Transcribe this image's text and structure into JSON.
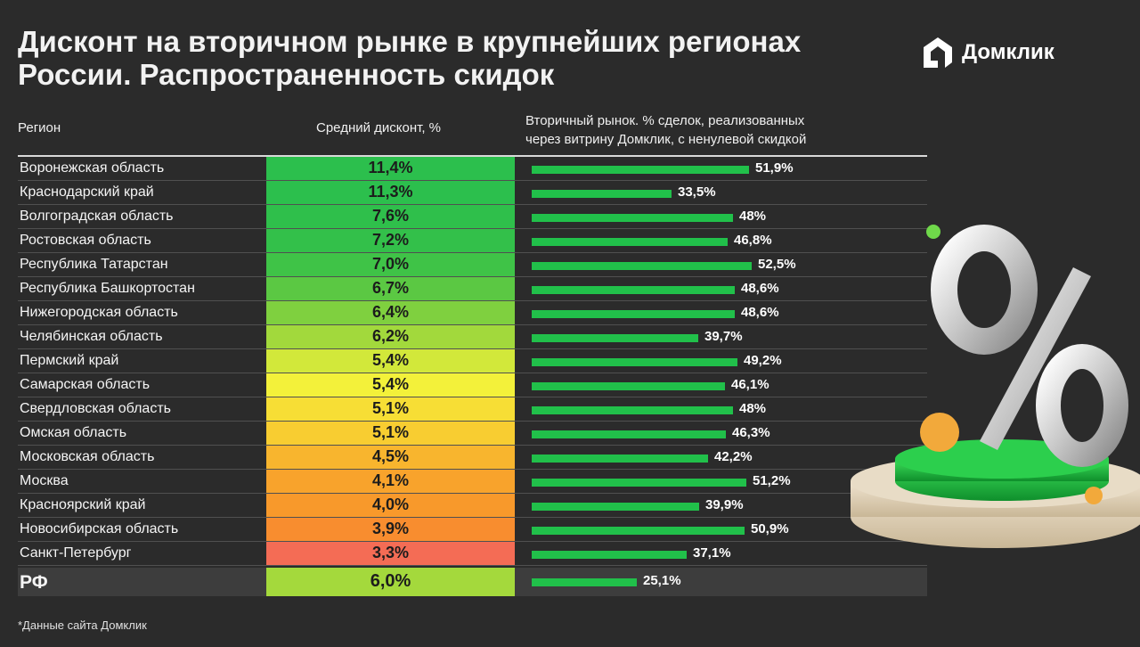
{
  "title": {
    "line1": "Дисконт на вторичном рынке в крупнейших регионах",
    "line2": "России. Распространенность скидок"
  },
  "brand": {
    "name": "Домклик",
    "color": "#21c04a"
  },
  "headers": {
    "region": "Регион",
    "discount": "Средний дисконт, %",
    "bar_line1": "Вторичный рынок. % сделок, реализованных",
    "bar_line2": "через витрину Домклик, с ненулевой скидкой"
  },
  "rows": [
    {
      "region": "Воронежская область",
      "discount": "11,4%",
      "share": "51,9%",
      "color": "#2cbf4d"
    },
    {
      "region": "Краснодарский край",
      "discount": "11,3%",
      "share": "33,5%",
      "color": "#2cbf4d"
    },
    {
      "region": "Волгоградская область",
      "discount": "7,6%",
      "share": "48%",
      "color": "#2fbf4b"
    },
    {
      "region": "Ростовская область",
      "discount": "7,2%",
      "share": "46,8%",
      "color": "#33c04a"
    },
    {
      "region": "Республика Татарстан",
      "discount": "7,0%",
      "share": "52,5%",
      "color": "#3fc347"
    },
    {
      "region": "Республика Башкортостан",
      "discount": "6,7%",
      "share": "48,6%",
      "color": "#5bc843"
    },
    {
      "region": "Нижегородская область",
      "discount": "6,4%",
      "share": "48,6%",
      "color": "#7fd03f"
    },
    {
      "region": "Челябинская область",
      "discount": "6,2%",
      "share": "39,7%",
      "color": "#a2d93c"
    },
    {
      "region": "Пермский край",
      "discount": "5,4%",
      "share": "49,2%",
      "color": "#d2e83a"
    },
    {
      "region": "Самарская область",
      "discount": "5,4%",
      "share": "46,1%",
      "color": "#f3f13a"
    },
    {
      "region": "Свердловская область",
      "discount": "5,1%",
      "share": "48%",
      "color": "#f7de35"
    },
    {
      "region": "Омская область",
      "discount": "5,1%",
      "share": "46,3%",
      "color": "#f8cd31"
    },
    {
      "region": "Московская область",
      "discount": "4,5%",
      "share": "42,2%",
      "color": "#f8b52e"
    },
    {
      "region": "Москва",
      "discount": "4,1%",
      "share": "51,2%",
      "color": "#f8a32c"
    },
    {
      "region": "Красноярский край",
      "discount": "4,0%",
      "share": "39,9%",
      "color": "#f8992b"
    },
    {
      "region": "Новосибирская область",
      "discount": "3,9%",
      "share": "50,9%",
      "color": "#f88d2f"
    },
    {
      "region": "Санкт-Петербург",
      "discount": "3,3%",
      "share": "37,1%",
      "color": "#f46c55"
    }
  ],
  "total": {
    "region": "РФ",
    "discount": "6,0%",
    "share": "25,1%",
    "color": "#a4d93c"
  },
  "footnote": "*Данные сайта Домклик",
  "chart_data": {
    "type": "bar",
    "categories": [
      "Воронежская область",
      "Краснодарский край",
      "Волгоградская область",
      "Ростовская область",
      "Республика Татарстан",
      "Республика Башкортостан",
      "Нижегородская область",
      "Челябинская область",
      "Пермский край",
      "Самарская область",
      "Свердловская область",
      "Омская область",
      "Московская область",
      "Москва",
      "Красноярский край",
      "Новосибирская область",
      "Санкт-Петербург",
      "РФ"
    ],
    "series": [
      {
        "name": "Средний дисконт, %",
        "values": [
          11.4,
          11.3,
          7.6,
          7.2,
          7.0,
          6.7,
          6.4,
          6.2,
          5.4,
          5.4,
          5.1,
          5.1,
          4.5,
          4.1,
          4.0,
          3.9,
          3.3,
          6.0
        ]
      },
      {
        "name": "Вторичный рынок. % сделок, реализованных через витрину Домклик, с ненулевой скидкой",
        "values": [
          51.9,
          33.5,
          48,
          46.8,
          52.5,
          48.6,
          48.6,
          39.7,
          49.2,
          46.1,
          48,
          46.3,
          42.2,
          51.2,
          39.9,
          50.9,
          37.1,
          25.1
        ]
      }
    ],
    "orientation": "horizontal"
  }
}
